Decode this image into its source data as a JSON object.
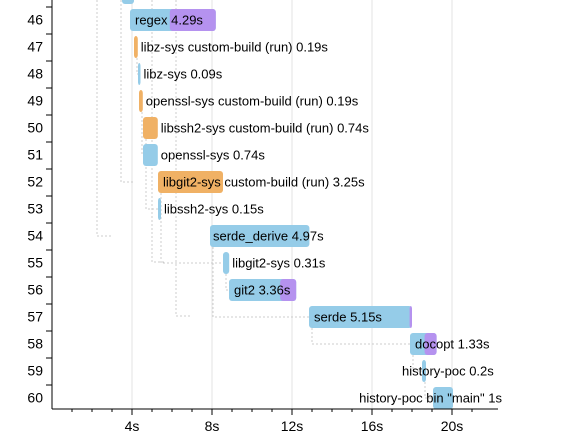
{
  "chart_data": {
    "type": "bar",
    "x_unit": "s",
    "xlim": [
      0,
      22
    ],
    "x_ticks": [
      {
        "value": 4,
        "label": "4s"
      },
      {
        "value": 8,
        "label": "8s"
      },
      {
        "value": 12,
        "label": "12s"
      },
      {
        "value": 16,
        "label": "16s"
      },
      {
        "value": 20,
        "label": "20s"
      }
    ],
    "rows": [
      {
        "index": "46",
        "label": "regex 4.29s",
        "start": 3.9,
        "duration": 4.29,
        "metadata_duration": 2.3,
        "kind": "crate",
        "label_inside": true
      },
      {
        "index": "47",
        "label": "libz-sys custom-build (run) 0.19s",
        "start": 4.1,
        "duration": 0.19,
        "kind": "build-script"
      },
      {
        "index": "48",
        "label": "libz-sys 0.09s",
        "start": 4.3,
        "duration": 0.09,
        "kind": "crate"
      },
      {
        "index": "49",
        "label": "openssl-sys custom-build (run) 0.19s",
        "start": 4.35,
        "duration": 0.19,
        "kind": "build-script"
      },
      {
        "index": "50",
        "label": "libssh2-sys custom-build (run) 0.74s",
        "start": 4.55,
        "duration": 0.74,
        "kind": "build-script"
      },
      {
        "index": "51",
        "label": "openssl-sys 0.74s",
        "start": 4.55,
        "duration": 0.74,
        "kind": "crate"
      },
      {
        "index": "52",
        "label": "libgit2-sys custom-build (run) 3.25s",
        "start": 5.3,
        "duration": 3.25,
        "kind": "build-script"
      },
      {
        "index": "53",
        "label": "libssh2-sys 0.15s",
        "start": 5.3,
        "duration": 0.15,
        "kind": "crate"
      },
      {
        "index": "54",
        "label": "serde_derive 4.97s",
        "start": 7.9,
        "duration": 4.97,
        "kind": "crate"
      },
      {
        "index": "55",
        "label": "libgit2-sys 0.31s",
        "start": 8.55,
        "duration": 0.31,
        "kind": "crate"
      },
      {
        "index": "56",
        "label": "git2 3.36s",
        "start": 8.85,
        "duration": 3.36,
        "metadata_duration": 0.8,
        "kind": "crate"
      },
      {
        "index": "57",
        "label": "serde 5.15s",
        "start": 12.85,
        "duration": 5.15,
        "metadata_duration": 0.12,
        "kind": "crate"
      },
      {
        "index": "58",
        "label": "docopt 1.33s",
        "start": 17.9,
        "duration": 1.33,
        "metadata_duration": 0.6,
        "kind": "crate"
      },
      {
        "index": "59",
        "label": "history-poc 0.2s",
        "start": 18.5,
        "duration": 0.2,
        "kind": "crate"
      },
      {
        "index": "60",
        "label": "history-poc bin \"main\" 1s",
        "start": 19.05,
        "duration": 1.0,
        "kind": "crate"
      }
    ],
    "dependencies": [
      [
        "47",
        "48"
      ],
      [
        "49",
        "51"
      ],
      [
        "50",
        "53"
      ],
      [
        "52",
        "55"
      ],
      [
        "55",
        "56"
      ],
      [
        "54",
        "57"
      ],
      [
        "57",
        "58"
      ],
      [
        "58",
        "59"
      ],
      [
        "59",
        "60"
      ]
    ],
    "grid": true,
    "colors": {
      "crate": "#95cce8",
      "build-script": "#f0b165",
      "metadata": "#b592ef",
      "axis": "#000000",
      "grid": "#e3e3e3",
      "dependency": "#cccccc",
      "text": "#000000"
    }
  }
}
